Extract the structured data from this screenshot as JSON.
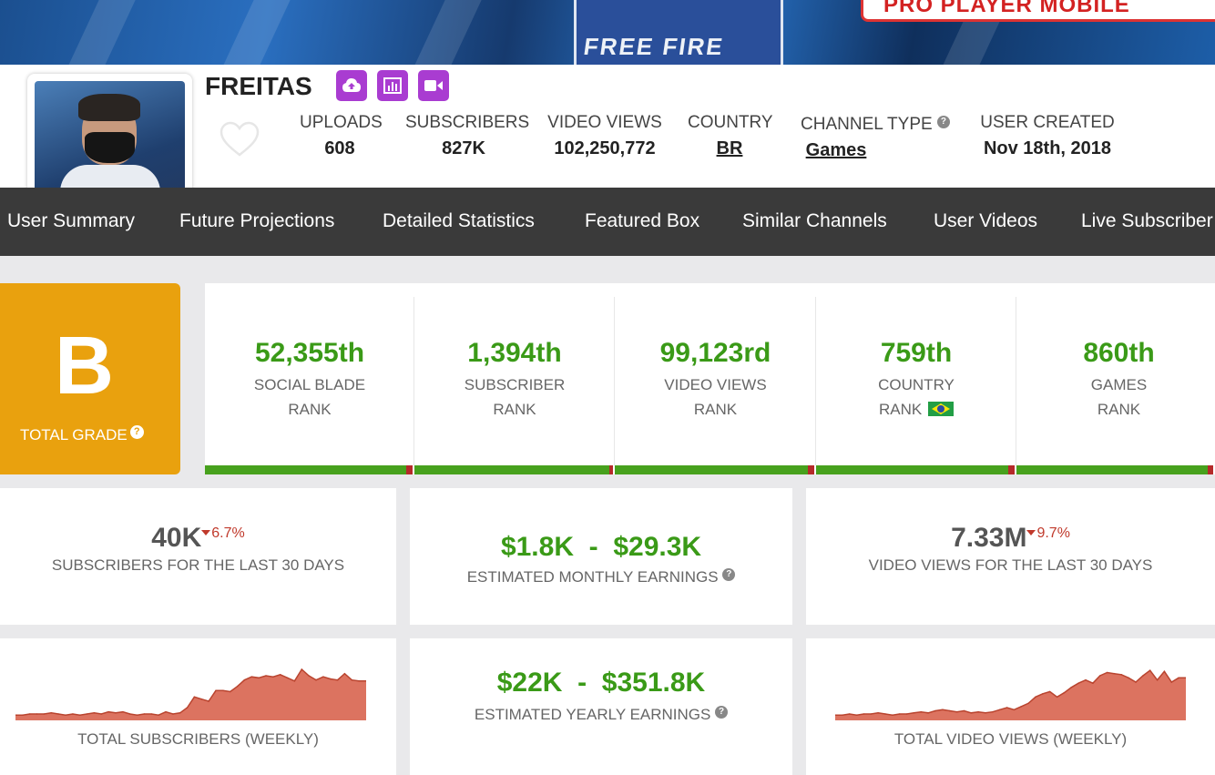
{
  "banner": {
    "jersey_text": "FREE FIRE",
    "promo_text": "PRO PLAYER MOBILE"
  },
  "channel": {
    "name": "FREITAS",
    "badges": [
      "upload-icon",
      "stats-icon",
      "video-icon"
    ]
  },
  "stats": {
    "uploads": {
      "label": "UPLOADS",
      "value": "608"
    },
    "subscribers": {
      "label": "SUBSCRIBERS",
      "value": "827K"
    },
    "video_views": {
      "label": "VIDEO VIEWS",
      "value": "102,250,772"
    },
    "country": {
      "label": "COUNTRY",
      "value": "BR"
    },
    "channel_type": {
      "label": "CHANNEL TYPE",
      "value": "Games",
      "help": "?"
    },
    "user_created": {
      "label": "USER CREATED",
      "value": "Nov 18th, 2018"
    }
  },
  "nav": {
    "items": [
      "User Summary",
      "Future Projections",
      "Detailed Statistics",
      "Featured Box",
      "Similar Channels",
      "User Videos",
      "Live Subscriber"
    ]
  },
  "grade": {
    "letter": "B",
    "label": "TOTAL GRADE",
    "help": "?"
  },
  "ranks": [
    {
      "value": "52,355th",
      "line1": "SOCIAL BLADE",
      "line2": "RANK",
      "fill": 0.97
    },
    {
      "value": "1,394th",
      "line1": "SUBSCRIBER",
      "line2": "RANK",
      "fill": 0.98
    },
    {
      "value": "99,123rd",
      "line1": "VIDEO VIEWS",
      "line2": "RANK",
      "fill": 0.97
    },
    {
      "value": "759th",
      "line1": "COUNTRY",
      "line2": "RANK",
      "fill": 0.97
    },
    {
      "value": "860th",
      "line1": "GAMES",
      "line2": "RANK",
      "fill": 0.97
    }
  ],
  "cards": {
    "subs30": {
      "value": "40K",
      "change": "6.7%",
      "label": "SUBSCRIBERS FOR THE LAST 30 DAYS"
    },
    "monthly": {
      "value": "$1.8K  -  $29.3K",
      "label": "ESTIMATED MONTHLY EARNINGS",
      "help": "?"
    },
    "views30": {
      "value": "7.33M",
      "change": "9.7%",
      "label": "VIDEO VIEWS FOR THE LAST 30 DAYS"
    },
    "subs_weekly": {
      "label": "TOTAL SUBSCRIBERS (WEEKLY)"
    },
    "yearly": {
      "value": "$22K  -  $351.8K",
      "label": "ESTIMATED YEARLY EARNINGS",
      "help": "?"
    },
    "views_weekly": {
      "label": "TOTAL VIDEO VIEWS (WEEKLY)"
    }
  },
  "colors": {
    "accent_purple": "#a93cd1",
    "grade_orange": "#e9a10e",
    "rank_green": "#3a9a17",
    "bar_green": "#47a11d",
    "change_red": "#c0392b",
    "sparkline_fill": "#dc7360",
    "nav_bg": "#3a3a3a"
  },
  "chart_data": [
    {
      "type": "area",
      "x": [
        1,
        2,
        3,
        4,
        5,
        6,
        7,
        8,
        9,
        10,
        11,
        12,
        13,
        14,
        15,
        16,
        17,
        18,
        19,
        20,
        21,
        22,
        23,
        24,
        25,
        26,
        27,
        28,
        29,
        30,
        31,
        32,
        33,
        34,
        35,
        36,
        37,
        38,
        39,
        40,
        41,
        42,
        43,
        44,
        45,
        46,
        47,
        48,
        49,
        50
      ],
      "series": [
        {
          "values": [
            5,
            5,
            6,
            6,
            6,
            7,
            6,
            5,
            6,
            5,
            6,
            7,
            6,
            8,
            7,
            8,
            6,
            5,
            6,
            6,
            5,
            8,
            6,
            7,
            12,
            22,
            20,
            18,
            28,
            28,
            27,
            32,
            38,
            41,
            40,
            42,
            41,
            43,
            40,
            37,
            48,
            42,
            38,
            41,
            39,
            38,
            44,
            38,
            37,
            37
          ]
        }
      ],
      "ylim": [
        0,
        60
      ],
      "xlabel": "TOTAL SUBSCRIBERS (WEEKLY)"
    },
    {
      "type": "area",
      "x": [
        1,
        2,
        3,
        4,
        5,
        6,
        7,
        8,
        9,
        10,
        11,
        12,
        13,
        14,
        15,
        16,
        17,
        18,
        19,
        20,
        21,
        22,
        23,
        24,
        25,
        26,
        27,
        28,
        29,
        30,
        31,
        32,
        33,
        34,
        35,
        36,
        37,
        38,
        39,
        40,
        41,
        42,
        43,
        44,
        45,
        46,
        47,
        48,
        49,
        50
      ],
      "series": [
        {
          "values": [
            5,
            5,
            6,
            5,
            6,
            6,
            7,
            6,
            5,
            6,
            6,
            7,
            8,
            7,
            9,
            10,
            9,
            8,
            9,
            7,
            8,
            7,
            8,
            10,
            12,
            10,
            13,
            16,
            22,
            25,
            27,
            22,
            26,
            31,
            35,
            38,
            35,
            42,
            45,
            44,
            43,
            40,
            36,
            42,
            47,
            38,
            46,
            36,
            40,
            40
          ]
        }
      ],
      "ylim": [
        0,
        60
      ],
      "xlabel": "TOTAL VIDEO VIEWS (WEEKLY)"
    }
  ]
}
